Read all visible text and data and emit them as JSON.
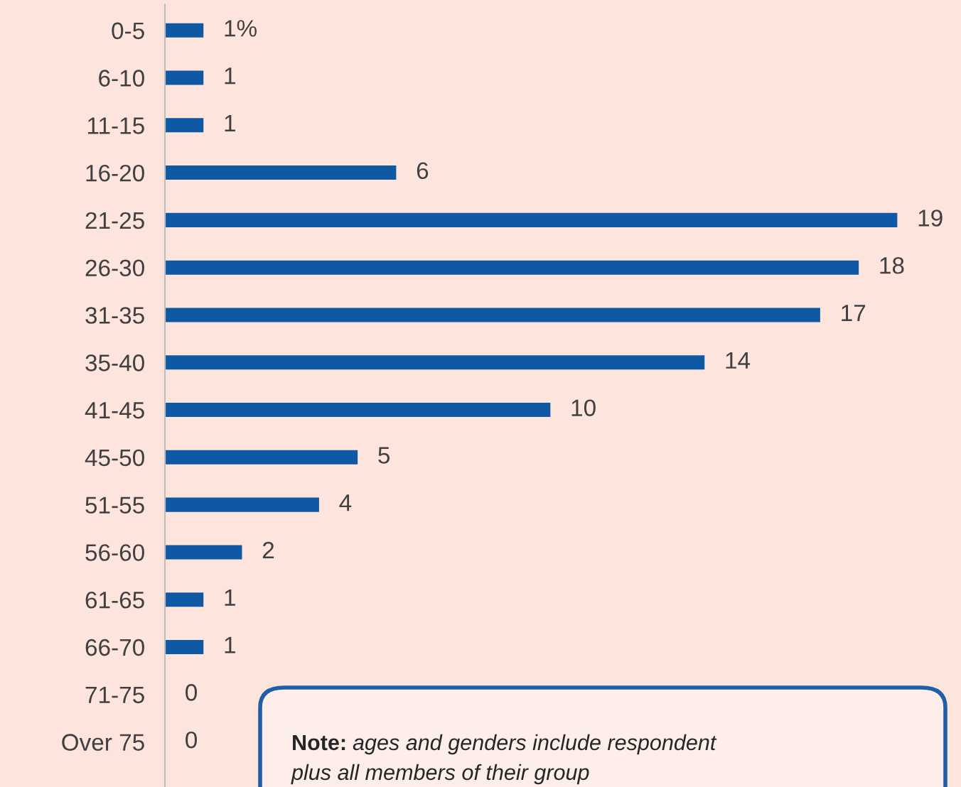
{
  "chart_data": {
    "type": "bar",
    "orientation": "horizontal",
    "categories": [
      "0-5",
      "6-10",
      "11-15",
      "16-20",
      "21-25",
      "26-30",
      "31-35",
      "35-40",
      "41-45",
      "45-50",
      "51-55",
      "56-60",
      "61-65",
      "66-70",
      "71-75",
      "Over 75"
    ],
    "values": [
      1,
      1,
      1,
      6,
      19,
      18,
      17,
      14,
      10,
      5,
      4,
      2,
      1,
      1,
      0,
      0
    ],
    "value_labels": [
      "1%",
      "1",
      "1",
      "6",
      "19",
      "18",
      "17",
      "14",
      "10",
      "5",
      "4",
      "2",
      "1",
      "1",
      "0",
      "0"
    ],
    "color": "#0f59a4",
    "grid": false,
    "legend": false,
    "annotations": [
      "Note: ages and genders include respondent\nplus all members of their group"
    ]
  }
}
